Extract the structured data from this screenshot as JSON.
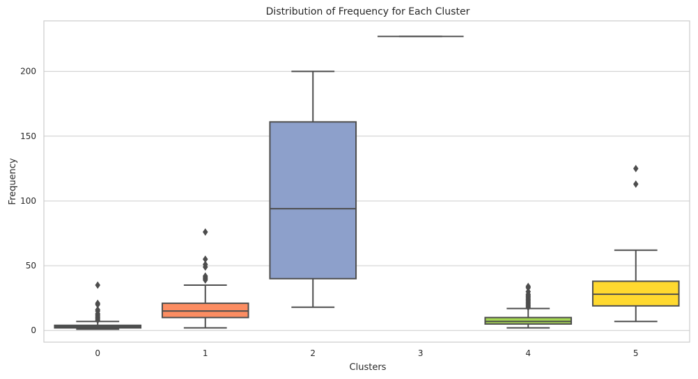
{
  "chart_data": {
    "type": "box",
    "title": "Distribution of Frequency for Each Cluster",
    "xlabel": "Clusters",
    "ylabel": "Frequency",
    "ylim": [
      -9,
      239
    ],
    "yticks": [
      0,
      50,
      100,
      150,
      200
    ],
    "grid": true,
    "categories": [
      "0",
      "1",
      "2",
      "3",
      "4",
      "5"
    ],
    "boxes": [
      {
        "category": "0",
        "color": "#66c2a5",
        "whisker_low": 1,
        "q1": 2,
        "median": 3,
        "q3": 4,
        "whisker_high": 7,
        "outliers": [
          35,
          21,
          20,
          16,
          15,
          13,
          12,
          11,
          10,
          9,
          8
        ]
      },
      {
        "category": "1",
        "color": "#fc8d62",
        "whisker_low": 2,
        "q1": 10,
        "median": 15,
        "q3": 21,
        "whisker_high": 35,
        "outliers": [
          76,
          55,
          51,
          49,
          42,
          41,
          40,
          39
        ]
      },
      {
        "category": "2",
        "color": "#8da0cb",
        "whisker_low": 18,
        "q1": 40,
        "median": 94,
        "q3": 161,
        "whisker_high": 200,
        "outliers": []
      },
      {
        "category": "3",
        "color": "#e78ac3",
        "whisker_low": 227,
        "q1": 227,
        "median": 227,
        "q3": 227,
        "whisker_high": 227,
        "outliers": []
      },
      {
        "category": "4",
        "color": "#a6d854",
        "whisker_low": 2,
        "q1": 5,
        "median": 7,
        "q3": 10,
        "whisker_high": 17,
        "outliers": [
          34,
          33,
          30,
          28,
          27,
          26,
          25,
          24,
          23,
          22,
          21,
          20,
          19,
          18
        ]
      },
      {
        "category": "5",
        "color": "#ffd92f",
        "whisker_low": 7,
        "q1": 19,
        "median": 28,
        "q3": 38,
        "whisker_high": 62,
        "outliers": [
          125,
          113
        ]
      }
    ]
  }
}
